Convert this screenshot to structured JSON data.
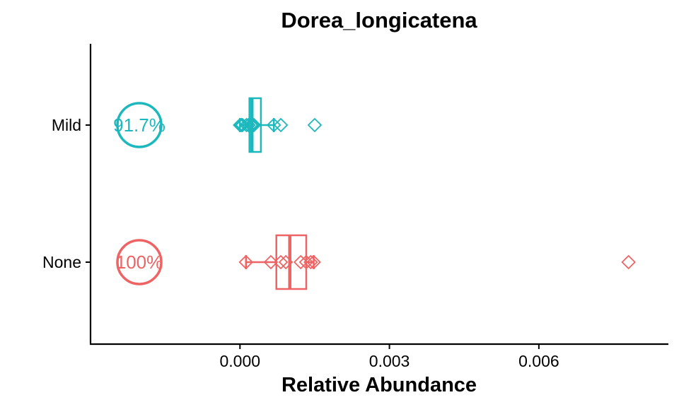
{
  "chart_data": {
    "type": "boxplot",
    "title": "Dorea_longicatena",
    "xlabel": "Relative Abundance",
    "ylabel": "",
    "xlim": [
      -0.003,
      0.0086
    ],
    "x_ticks": [
      0.0,
      0.003,
      0.006
    ],
    "x_tick_labels": [
      "0.000",
      "0.003",
      "0.006"
    ],
    "categories": [
      "Mild",
      "None"
    ],
    "grid": false,
    "series": [
      {
        "category": "Mild",
        "color": "#1DB8BD",
        "prevalence_label": "91.7%",
        "box": {
          "whisker_low": 0.0,
          "q1": 0.00019,
          "median": 0.00024,
          "q3": 0.00042,
          "whisker_high": 0.00068
        },
        "points": [
          0.0,
          3e-05,
          5e-05,
          0.00013,
          0.00017,
          0.00022,
          0.00025,
          0.00028,
          0.00068,
          0.00082,
          0.0015
        ]
      },
      {
        "category": "None",
        "color": "#EE6363",
        "prevalence_label": "100%",
        "box": {
          "whisker_low": 0.00012,
          "q1": 0.00073,
          "median": 0.001,
          "q3": 0.00133,
          "whisker_high": 0.00148
        },
        "points": [
          0.00012,
          0.00062,
          0.00082,
          0.00092,
          0.00122,
          0.00133,
          0.00142,
          0.00148,
          0.0078
        ]
      }
    ]
  }
}
